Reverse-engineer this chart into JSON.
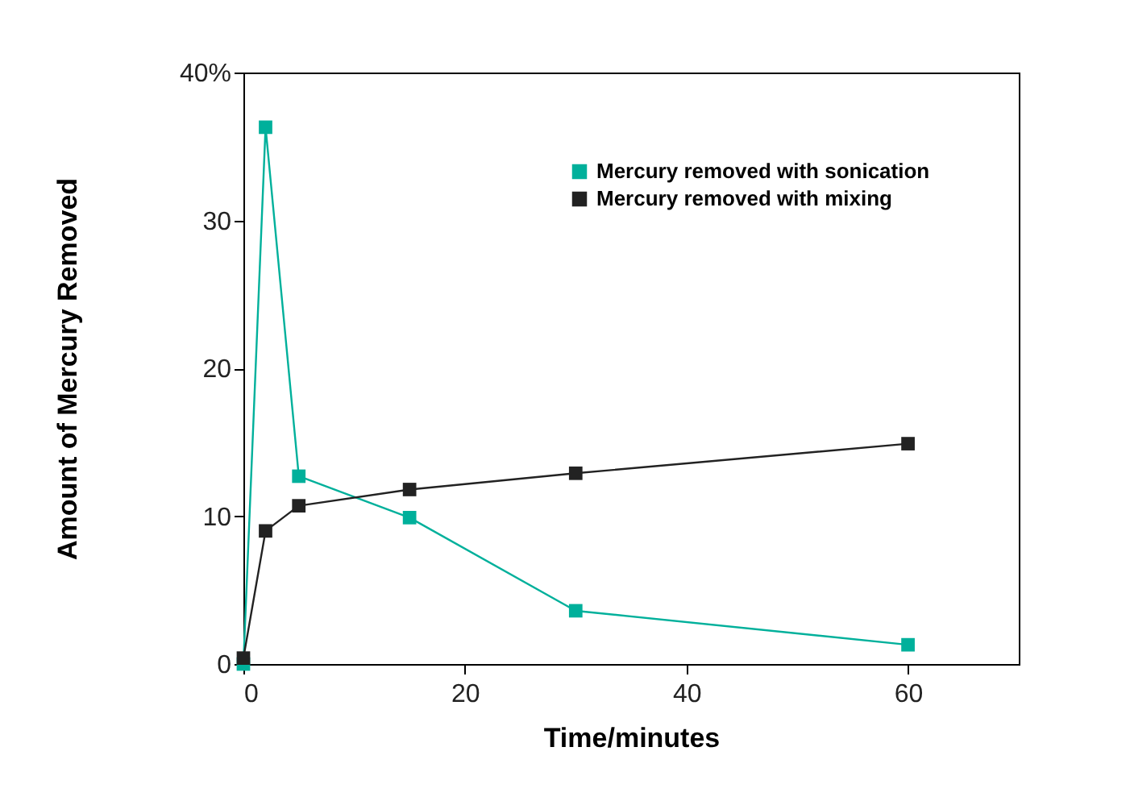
{
  "chart_data": {
    "type": "line",
    "xlabel": "Time/minutes",
    "ylabel": "Amount of Mercury Removed",
    "x": [
      0,
      2,
      5,
      15,
      30,
      60
    ],
    "series": [
      {
        "name": "Mercury removed with sonication",
        "color": "#00b09b",
        "values": [
          0,
          36.3,
          12.7,
          9.9,
          3.6,
          1.3
        ]
      },
      {
        "name": "Mercury removed with mixing",
        "color": "#222222",
        "values": [
          0.4,
          9.0,
          10.7,
          11.8,
          12.9,
          14.9
        ]
      }
    ],
    "xlim": [
      0,
      70
    ],
    "xticks": [
      0,
      20,
      40,
      60
    ],
    "ylim": [
      0,
      40
    ],
    "yticks": [
      0,
      10,
      20,
      30,
      {
        "value": 40,
        "label": "40%"
      }
    ],
    "grid": false,
    "legend": "top right",
    "marker": "square",
    "line_style": "solid"
  }
}
